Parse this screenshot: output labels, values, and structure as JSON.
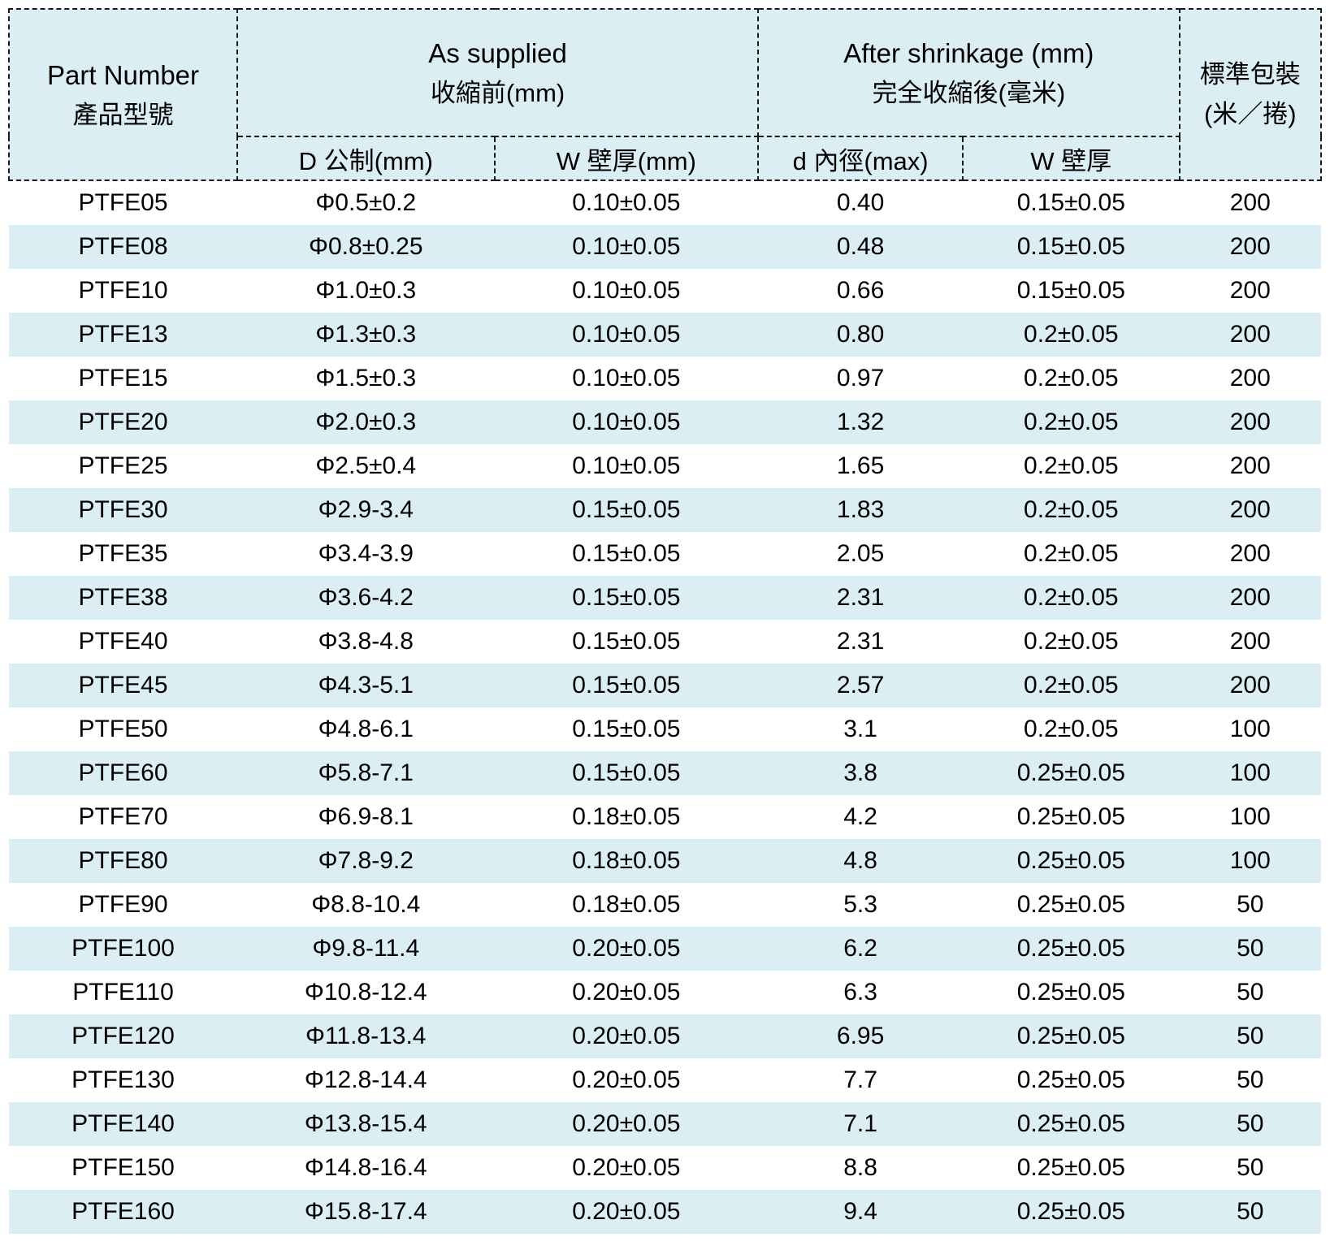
{
  "table": {
    "header": {
      "part_number": {
        "en": "Part Number",
        "zh": "產品型號"
      },
      "as_supplied": {
        "en": "As supplied",
        "zh": "收縮前(mm)"
      },
      "after_shrinkage": {
        "en": "After shrinkage (mm)",
        "zh": "完全收縮後(毫米)"
      },
      "packaging": {
        "line1": "標準包裝",
        "line2": "(米／捲)"
      },
      "sub_d_supplied": "D 公制(mm)",
      "sub_w_supplied": "W 壁厚(mm)",
      "sub_d_after": "d 內徑(max)",
      "sub_w_after": "W 壁厚"
    },
    "columns": [
      "part_number",
      "d_as_supplied",
      "w_as_supplied",
      "d_after_shrinkage",
      "w_after_shrinkage",
      "packaging"
    ],
    "rows": [
      [
        "PTFE05",
        "Φ0.5±0.2",
        "0.10±0.05",
        "0.40",
        "0.15±0.05",
        "200"
      ],
      [
        "PTFE08",
        "Φ0.8±0.25",
        "0.10±0.05",
        "0.48",
        "0.15±0.05",
        "200"
      ],
      [
        "PTFE10",
        "Φ1.0±0.3",
        "0.10±0.05",
        "0.66",
        "0.15±0.05",
        "200"
      ],
      [
        "PTFE13",
        "Φ1.3±0.3",
        "0.10±0.05",
        "0.80",
        "0.2±0.05",
        "200"
      ],
      [
        "PTFE15",
        "Φ1.5±0.3",
        "0.10±0.05",
        "0.97",
        "0.2±0.05",
        "200"
      ],
      [
        "PTFE20",
        "Φ2.0±0.3",
        "0.10±0.05",
        "1.32",
        "0.2±0.05",
        "200"
      ],
      [
        "PTFE25",
        "Φ2.5±0.4",
        "0.10±0.05",
        "1.65",
        "0.2±0.05",
        "200"
      ],
      [
        "PTFE30",
        "Φ2.9-3.4",
        "0.15±0.05",
        "1.83",
        "0.2±0.05",
        "200"
      ],
      [
        "PTFE35",
        "Φ3.4-3.9",
        "0.15±0.05",
        "2.05",
        "0.2±0.05",
        "200"
      ],
      [
        "PTFE38",
        "Φ3.6-4.2",
        "0.15±0.05",
        "2.31",
        "0.2±0.05",
        "200"
      ],
      [
        "PTFE40",
        "Φ3.8-4.8",
        "0.15±0.05",
        "2.31",
        "0.2±0.05",
        "200"
      ],
      [
        "PTFE45",
        "Φ4.3-5.1",
        "0.15±0.05",
        "2.57",
        "0.2±0.05",
        "200"
      ],
      [
        "PTFE50",
        "Φ4.8-6.1",
        "0.15±0.05",
        "3.1",
        "0.2±0.05",
        "100"
      ],
      [
        "PTFE60",
        "Φ5.8-7.1",
        "0.15±0.05",
        "3.8",
        "0.25±0.05",
        "100"
      ],
      [
        "PTFE70",
        "Φ6.9-8.1",
        "0.18±0.05",
        "4.2",
        "0.25±0.05",
        "100"
      ],
      [
        "PTFE80",
        "Φ7.8-9.2",
        "0.18±0.05",
        "4.8",
        "0.25±0.05",
        "100"
      ],
      [
        "PTFE90",
        "Φ8.8-10.4",
        "0.18±0.05",
        "5.3",
        "0.25±0.05",
        "50"
      ],
      [
        "PTFE100",
        "Φ9.8-11.4",
        "0.20±0.05",
        "6.2",
        "0.25±0.05",
        "50"
      ],
      [
        "PTFE110",
        "Φ10.8-12.4",
        "0.20±0.05",
        "6.3",
        "0.25±0.05",
        "50"
      ],
      [
        "PTFE120",
        "Φ11.8-13.4",
        "0.20±0.05",
        "6.95",
        "0.25±0.05",
        "50"
      ],
      [
        "PTFE130",
        "Φ12.8-14.4",
        "0.20±0.05",
        "7.7",
        "0.25±0.05",
        "50"
      ],
      [
        "PTFE140",
        "Φ13.8-15.4",
        "0.20±0.05",
        "7.1",
        "0.25±0.05",
        "50"
      ],
      [
        "PTFE150",
        "Φ14.8-16.4",
        "0.20±0.05",
        "8.8",
        "0.25±0.05",
        "50"
      ],
      [
        "PTFE160",
        "Φ15.8-17.4",
        "0.20±0.05",
        "9.4",
        "0.25±0.05",
        "50"
      ]
    ]
  },
  "colors": {
    "row_alt_background": "#daeef3",
    "header_background": "#daeef3",
    "border": "#1a1a1a",
    "text": "#000000"
  }
}
